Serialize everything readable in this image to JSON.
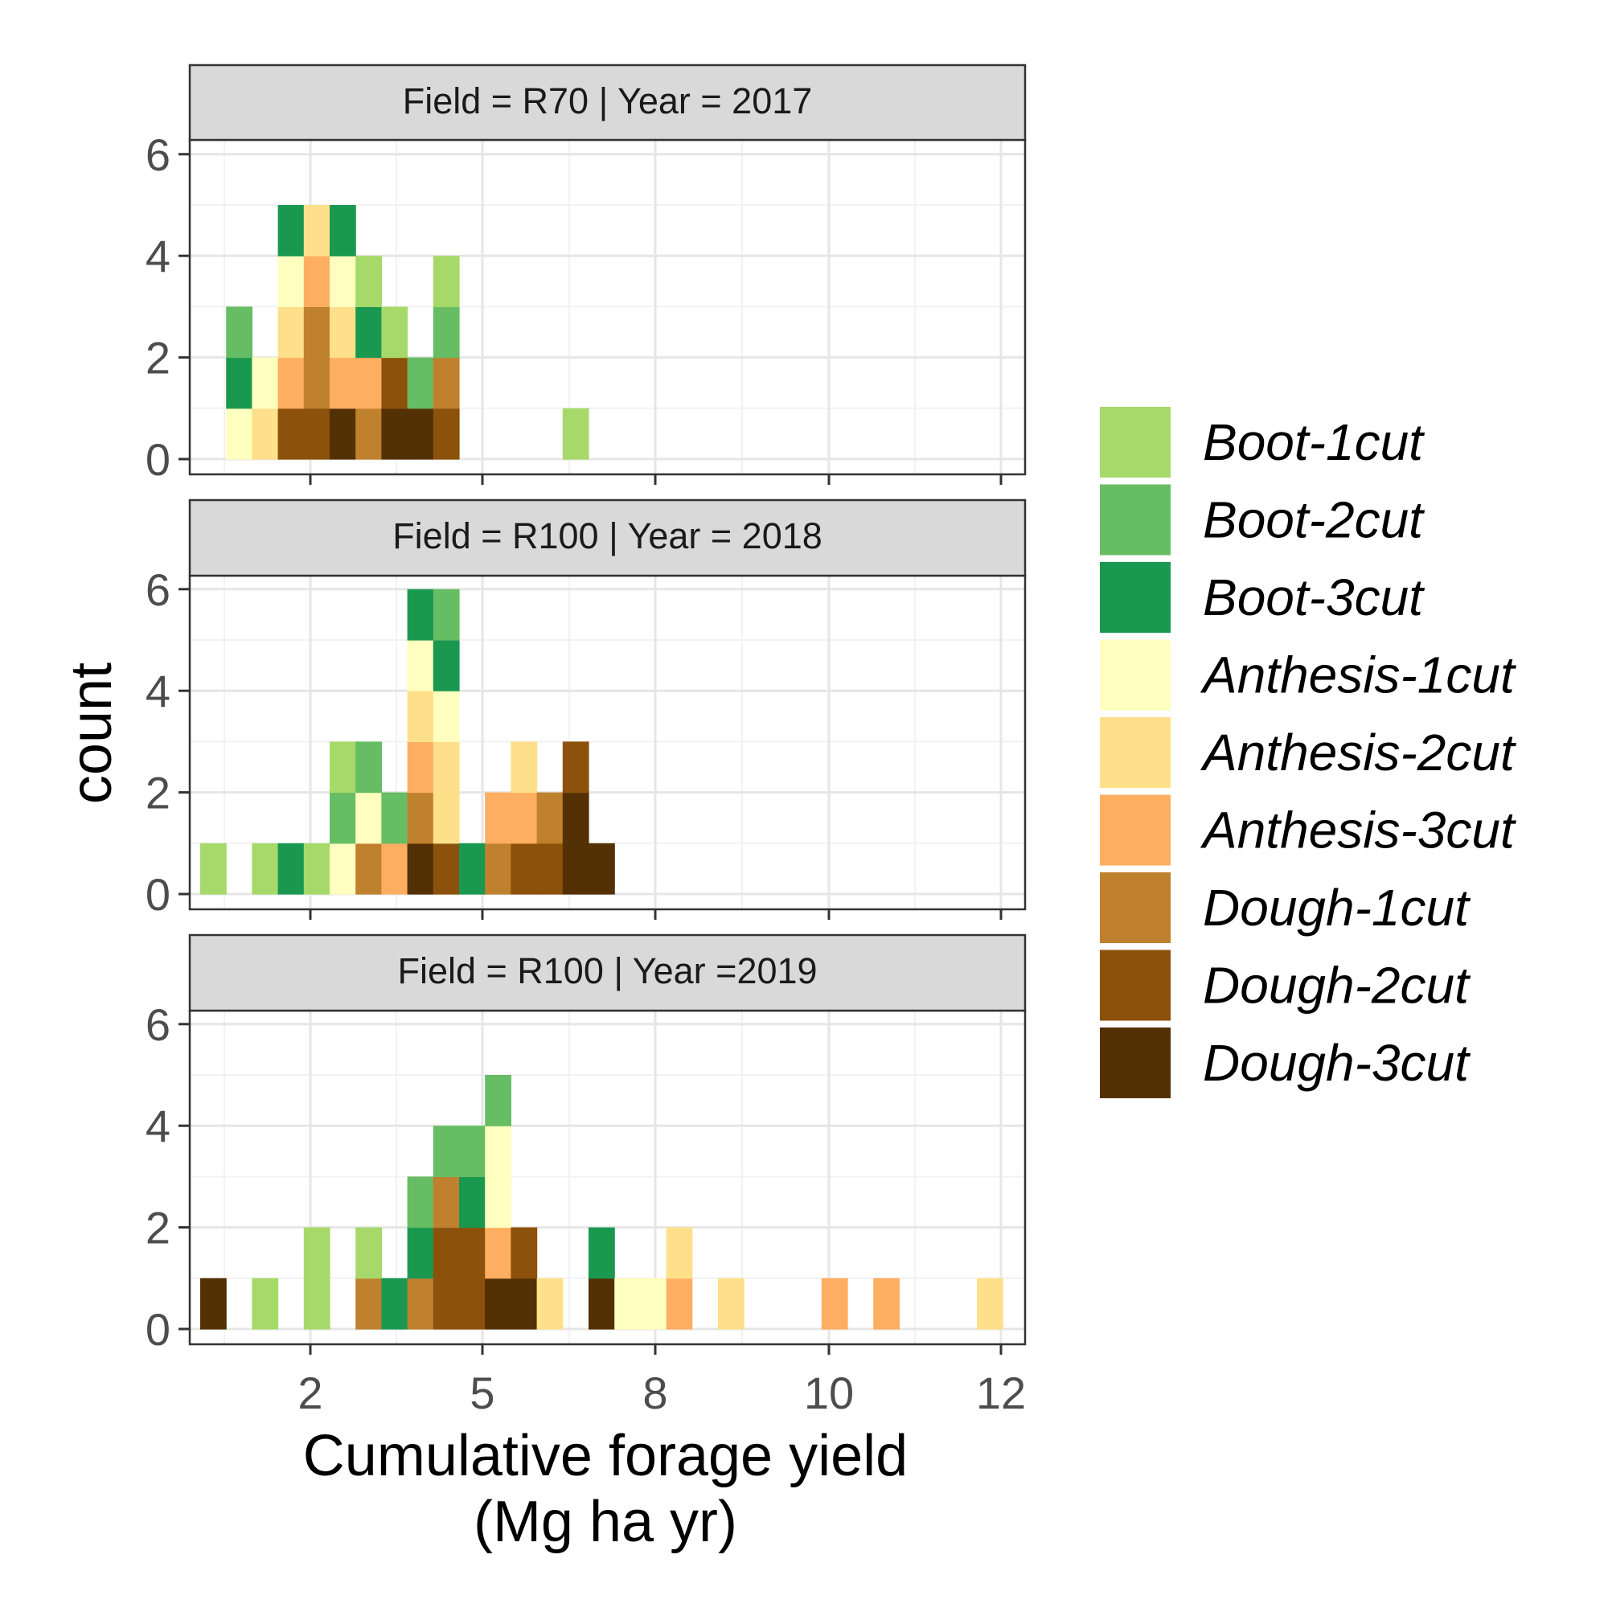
{
  "chart_data": {
    "type": "bar",
    "subtype": "stacked-histogram-faceted",
    "ylabel": "count",
    "xlabel_lines": [
      "Cumulative forage yield",
      "(Mg ha yr)"
    ],
    "x_ticks": [
      "2",
      "5",
      "8",
      "10",
      "12"
    ],
    "y_ticks": [
      "0",
      "2",
      "4",
      "6"
    ],
    "ylim": [
      0,
      6.6
    ],
    "grid": true,
    "legend_position": "right",
    "legend": [
      {
        "name": "Boot-1cut",
        "color": "#a6d96a"
      },
      {
        "name": "Boot-2cut",
        "color": "#66bd63"
      },
      {
        "name": "Boot-3cut",
        "color": "#1a9850"
      },
      {
        "name": "Anthesis-1cut",
        "color": "#ffffbf"
      },
      {
        "name": "Anthesis-2cut",
        "color": "#fee08b"
      },
      {
        "name": "Anthesis-3cut",
        "color": "#fdae61"
      },
      {
        "name": "Dough-1cut",
        "color": "#bf812d"
      },
      {
        "name": "Dough-2cut",
        "color": "#8c510a"
      },
      {
        "name": "Dough-3cut",
        "color": "#543005"
      }
    ],
    "panels": [
      {
        "label": "Field = R70  | Year = 2017",
        "bins": [
          {
            "bin": 2,
            "stack": [
              "Anthesis-1cut",
              "Boot-3cut",
              "Boot-2cut"
            ]
          },
          {
            "bin": 3,
            "stack": [
              "Anthesis-2cut",
              "Anthesis-1cut"
            ]
          },
          {
            "bin": 4,
            "stack": [
              "Dough-2cut",
              "Anthesis-3cut",
              "Anthesis-2cut",
              "Anthesis-1cut",
              "Boot-3cut"
            ]
          },
          {
            "bin": 5,
            "stack": [
              "Dough-2cut",
              "Dough-1cut",
              "Dough-1cut",
              "Anthesis-3cut",
              "Anthesis-2cut"
            ]
          },
          {
            "bin": 6,
            "stack": [
              "Dough-3cut",
              "Anthesis-3cut",
              "Anthesis-2cut",
              "Anthesis-1cut",
              "Boot-3cut"
            ]
          },
          {
            "bin": 7,
            "stack": [
              "Dough-1cut",
              "Anthesis-3cut",
              "Boot-3cut",
              "Boot-1cut"
            ]
          },
          {
            "bin": 8,
            "stack": [
              "Dough-3cut",
              "Dough-2cut",
              "Boot-1cut"
            ]
          },
          {
            "bin": 9,
            "stack": [
              "Dough-3cut",
              "Boot-2cut"
            ]
          },
          {
            "bin": 10,
            "stack": [
              "Dough-2cut",
              "Dough-1cut",
              "Boot-2cut",
              "Boot-1cut"
            ]
          },
          {
            "bin": 15,
            "stack": [
              "Boot-1cut"
            ]
          }
        ]
      },
      {
        "label": "Field = R100 | Year = 2018",
        "bins": [
          {
            "bin": 1,
            "stack": [
              "Boot-1cut"
            ]
          },
          {
            "bin": 3,
            "stack": [
              "Boot-1cut"
            ]
          },
          {
            "bin": 4,
            "stack": [
              "Boot-3cut"
            ]
          },
          {
            "bin": 5,
            "stack": [
              "Boot-1cut"
            ]
          },
          {
            "bin": 6,
            "stack": [
              "Anthesis-1cut",
              "Boot-2cut",
              "Boot-1cut"
            ]
          },
          {
            "bin": 7,
            "stack": [
              "Dough-1cut",
              "Anthesis-1cut",
              "Boot-2cut"
            ]
          },
          {
            "bin": 8,
            "stack": [
              "Anthesis-3cut",
              "Boot-2cut"
            ]
          },
          {
            "bin": 9,
            "stack": [
              "Dough-3cut",
              "Dough-1cut",
              "Anthesis-3cut",
              "Anthesis-2cut",
              "Anthesis-1cut",
              "Boot-3cut"
            ]
          },
          {
            "bin": 10,
            "stack": [
              "Dough-2cut",
              "Anthesis-2cut",
              "Anthesis-2cut",
              "Anthesis-1cut",
              "Boot-3cut",
              "Boot-2cut"
            ]
          },
          {
            "bin": 11,
            "stack": [
              "Boot-3cut"
            ]
          },
          {
            "bin": 12,
            "stack": [
              "Dough-1cut",
              "Anthesis-3cut"
            ]
          },
          {
            "bin": 13,
            "stack": [
              "Dough-2cut",
              "Anthesis-3cut",
              "Anthesis-2cut"
            ]
          },
          {
            "bin": 14,
            "stack": [
              "Dough-2cut",
              "Dough-1cut"
            ]
          },
          {
            "bin": 15,
            "stack": [
              "Dough-3cut",
              "Dough-3cut",
              "Dough-2cut"
            ]
          },
          {
            "bin": 16,
            "stack": [
              "Dough-3cut"
            ]
          }
        ]
      },
      {
        "label": "Field = R100 | Year =2019",
        "bins": [
          {
            "bin": 1,
            "stack": [
              "Dough-3cut"
            ]
          },
          {
            "bin": 3,
            "stack": [
              "Boot-1cut"
            ]
          },
          {
            "bin": 5,
            "stack": [
              "Boot-1cut",
              "Boot-1cut"
            ]
          },
          {
            "bin": 7,
            "stack": [
              "Dough-1cut",
              "Boot-1cut"
            ]
          },
          {
            "bin": 8,
            "stack": [
              "Boot-3cut"
            ]
          },
          {
            "bin": 9,
            "stack": [
              "Dough-1cut",
              "Boot-3cut",
              "Boot-2cut"
            ]
          },
          {
            "bin": 10,
            "stack": [
              "Dough-2cut",
              "Dough-2cut",
              "Dough-1cut",
              "Boot-2cut"
            ]
          },
          {
            "bin": 11,
            "stack": [
              "Dough-2cut",
              "Dough-2cut",
              "Boot-3cut",
              "Boot-2cut"
            ]
          },
          {
            "bin": 12,
            "stack": [
              "Dough-3cut",
              "Anthesis-3cut",
              "Anthesis-1cut",
              "Anthesis-1cut",
              "Boot-2cut"
            ]
          },
          {
            "bin": 13,
            "stack": [
              "Dough-3cut",
              "Dough-2cut"
            ]
          },
          {
            "bin": 14,
            "stack": [
              "Anthesis-2cut"
            ]
          },
          {
            "bin": 16,
            "stack": [
              "Dough-3cut",
              "Boot-3cut"
            ]
          },
          {
            "bin": 17,
            "stack": [
              "Anthesis-1cut"
            ]
          },
          {
            "bin": 18,
            "stack": [
              "Anthesis-1cut"
            ]
          },
          {
            "bin": 19,
            "stack": [
              "Anthesis-3cut",
              "Anthesis-2cut"
            ]
          },
          {
            "bin": 21,
            "stack": [
              "Anthesis-2cut"
            ]
          },
          {
            "bin": 25,
            "stack": [
              "Anthesis-3cut"
            ]
          },
          {
            "bin": 27,
            "stack": [
              "Anthesis-3cut"
            ]
          },
          {
            "bin": 31,
            "stack": [
              "Anthesis-2cut"
            ]
          }
        ]
      }
    ]
  }
}
